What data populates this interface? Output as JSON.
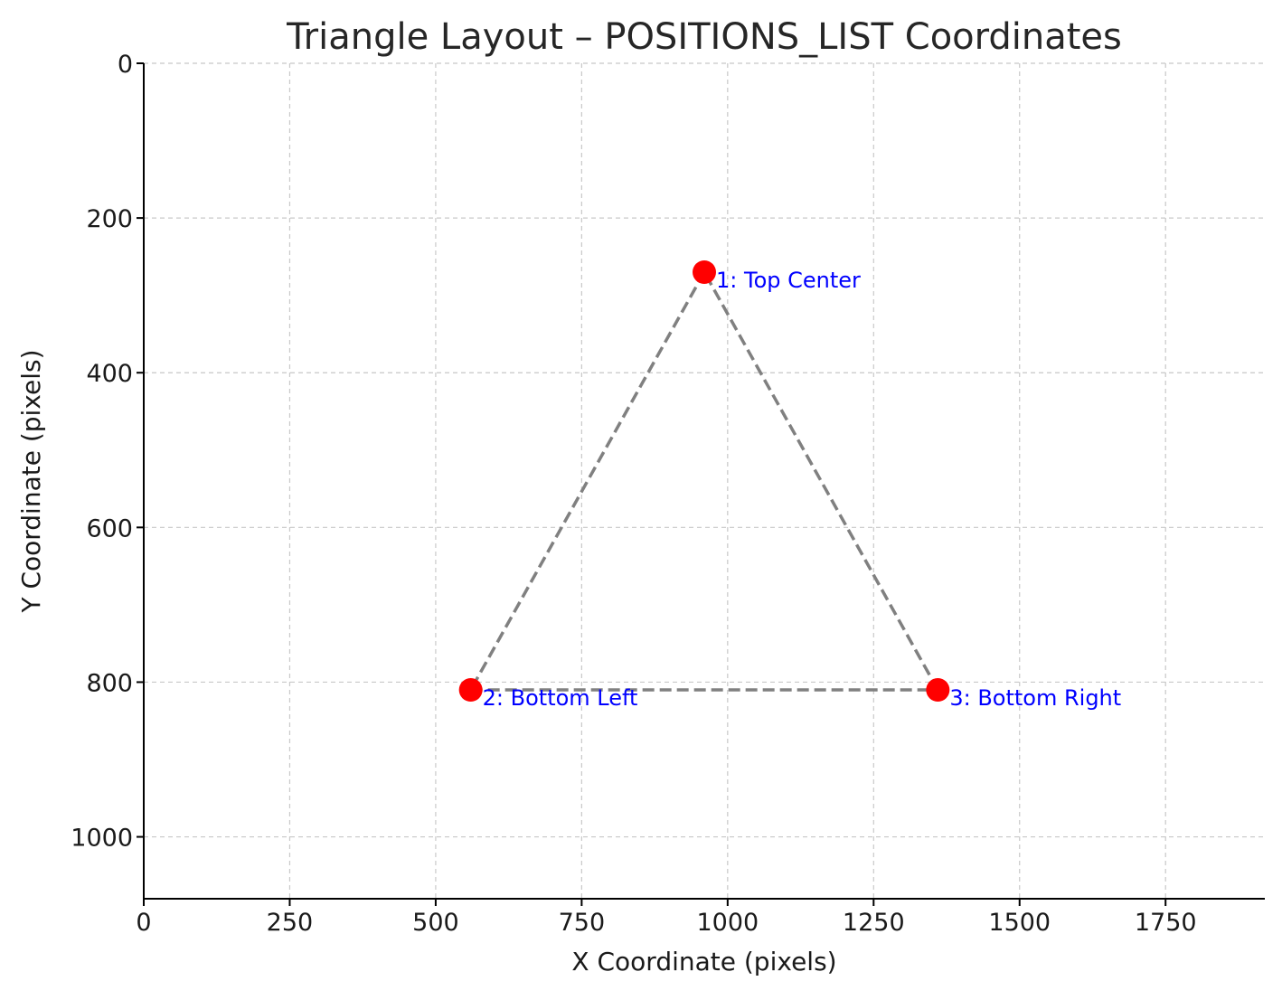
{
  "chart_data": {
    "type": "scatter",
    "title": "Triangle Layout – POSITIONS_LIST Coordinates",
    "xlabel": "X Coordinate (pixels)",
    "ylabel": "Y Coordinate (pixels)",
    "xlim": [
      0,
      1920
    ],
    "ylim": [
      1080,
      0
    ],
    "y_inverted": true,
    "x_ticks": [
      0,
      250,
      500,
      750,
      1000,
      1250,
      1500,
      1750
    ],
    "y_ticks": [
      0,
      200,
      400,
      600,
      800,
      1000
    ],
    "grid": true,
    "points": [
      {
        "label": "1: Top Center",
        "x": 960,
        "y": 270
      },
      {
        "label": "2: Bottom Left",
        "x": 560,
        "y": 810
      },
      {
        "label": "3: Bottom Right",
        "x": 1360,
        "y": 810
      }
    ],
    "closed_path": true,
    "colors": {
      "point": "#ff0000",
      "label": "#0000ff",
      "edge": "#808080",
      "grid": "#c8c8c8"
    }
  }
}
